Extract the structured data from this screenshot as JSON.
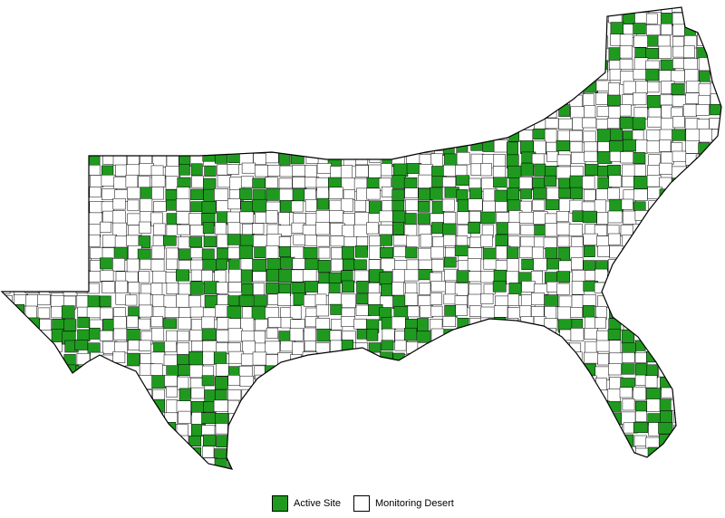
{
  "map": {
    "region": "Southern United States counties",
    "colors": {
      "active": "#1f9a1f",
      "desert": "#ffffff",
      "border": "#000000"
    }
  },
  "legend": {
    "items": [
      {
        "key": "active",
        "label": "Active Site"
      },
      {
        "key": "desert",
        "label": "Monitoring Desert"
      }
    ]
  }
}
